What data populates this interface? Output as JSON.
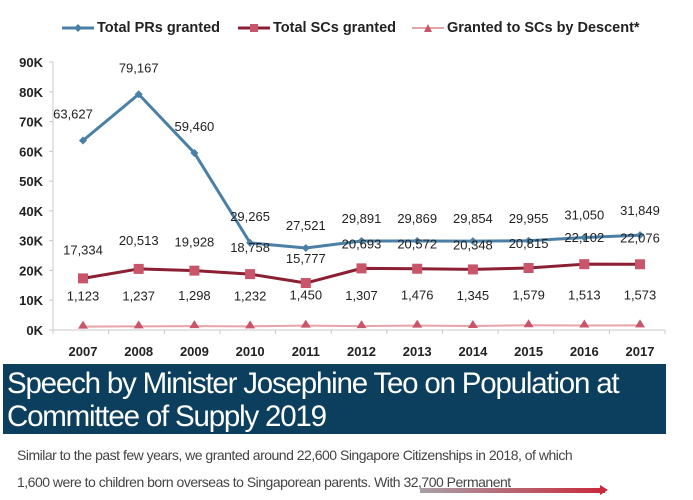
{
  "chart_data": {
    "type": "line",
    "title": "",
    "xlabel": "",
    "ylabel": "",
    "categories": [
      "2007",
      "2008",
      "2009",
      "2010",
      "2011",
      "2012",
      "2013",
      "2014",
      "2015",
      "2016",
      "2017"
    ],
    "ylim": [
      0,
      90000
    ],
    "yticks": [
      0,
      10000,
      20000,
      30000,
      40000,
      50000,
      60000,
      70000,
      80000,
      90000
    ],
    "ytick_labels": [
      "0K",
      "10K",
      "20K",
      "30K",
      "40K",
      "50K",
      "60K",
      "70K",
      "80K",
      "90K"
    ],
    "grid": false,
    "legend_position": "top",
    "series": [
      {
        "name": "Total PRs granted",
        "color": "#4a7fa6",
        "marker": "diamond",
        "values": [
          63627,
          79167,
          59460,
          29265,
          27521,
          29891,
          29869,
          29854,
          29955,
          31050,
          31849
        ],
        "labels": [
          "63,627",
          "79,167",
          "59,460",
          "29,265",
          "27,521",
          "29,891",
          "29,869",
          "29,854",
          "29,955",
          "31,050",
          "31,849"
        ]
      },
      {
        "name": "Total SCs granted",
        "color": "#8b1f33",
        "marker_color": "#c9556a",
        "marker": "square",
        "values": [
          17334,
          20513,
          19928,
          18758,
          15777,
          20693,
          20572,
          20348,
          20815,
          22102,
          22076
        ],
        "labels": [
          "17,334",
          "20,513",
          "19,928",
          "18,758",
          "15,777",
          "20,693",
          "20,572",
          "20,348",
          "20,815",
          "22,102",
          "22,076"
        ]
      },
      {
        "name": "Granted to SCs by Descent*",
        "color": "#e8a3a8",
        "marker_color": "#c9556a",
        "marker": "triangle",
        "values": [
          1123,
          1237,
          1298,
          1232,
          1450,
          1307,
          1476,
          1345,
          1579,
          1513,
          1573
        ],
        "labels": [
          "1,123",
          "1,237",
          "1,298",
          "1,232",
          "1,450",
          "1,307",
          "1,476",
          "1,345",
          "1,579",
          "1,513",
          "1,573"
        ]
      }
    ]
  },
  "banner": {
    "title_line1": "Speech by Minister Josephine Teo on Population at",
    "title_line2": "Committee of Supply 2019"
  },
  "paragraph": {
    "line1": "Similar to the past few years, we granted around 22,600 Singapore Citizenships in 2018, of which",
    "line2": "1,600 were to children born overseas to Singaporean parents. With 32,700 Permanent"
  }
}
